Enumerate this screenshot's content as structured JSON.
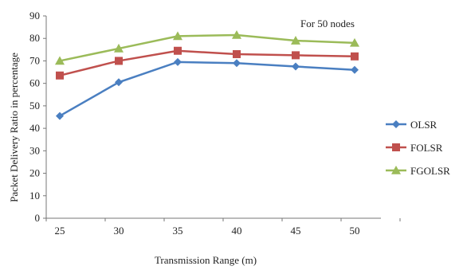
{
  "chart_data": {
    "type": "line",
    "annotation": "For 50 nodes",
    "xlabel": "Transmission Range (m)",
    "ylabel": "Packet Delivery Ratio in percentage",
    "x": [
      25,
      30,
      35,
      40,
      45,
      50
    ],
    "ylim": [
      0,
      90
    ],
    "yticks": [
      0,
      10,
      20,
      30,
      40,
      50,
      60,
      70,
      80,
      90
    ],
    "grid": false,
    "legend_position": "right",
    "series": [
      {
        "name": "OLSR",
        "values": [
          45.5,
          60.5,
          69.5,
          69,
          67.5,
          66
        ],
        "color": "#4a7fc1",
        "marker": "diamond"
      },
      {
        "name": "FOLSR",
        "values": [
          63.5,
          70,
          74.5,
          73,
          72.5,
          72
        ],
        "color": "#c0504d",
        "marker": "square"
      },
      {
        "name": "FGOLSR",
        "values": [
          70,
          75.5,
          81,
          81.5,
          79,
          78
        ],
        "color": "#9bbb59",
        "marker": "triangle"
      }
    ]
  }
}
